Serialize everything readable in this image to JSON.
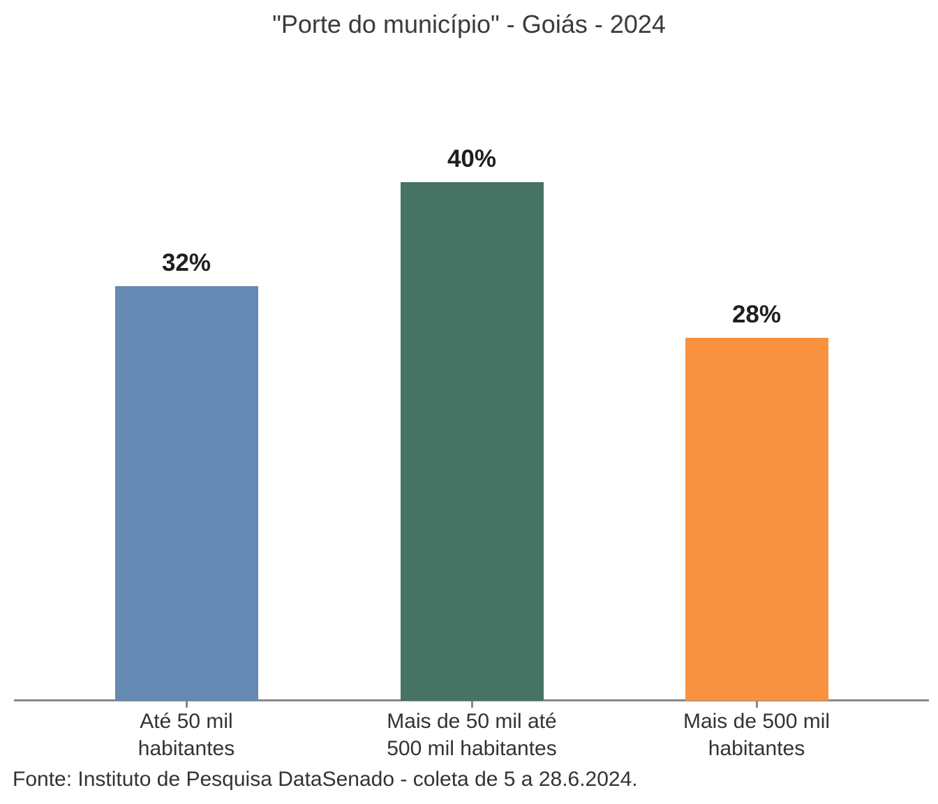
{
  "title": "\"Porte do município\" - Goiás - 2024",
  "footer": "Fonte: Instituto de Pesquisa DataSenado - coleta de 5 a 28.6.2024.",
  "chart_data": {
    "type": "bar",
    "title": "\"Porte do município\" - Goiás - 2024",
    "categories": [
      "Até 50 mil habitantes",
      "Mais de 50 mil até 500 mil habitantes",
      "Mais de 500 mil habitantes"
    ],
    "category_lines": [
      [
        "Até 50 mil",
        "habitantes"
      ],
      [
        "Mais de 50 mil até",
        "500 mil habitantes"
      ],
      [
        "Mais de 500 mil",
        "habitantes"
      ]
    ],
    "values": [
      32,
      40,
      28
    ],
    "value_labels": [
      "32%",
      "40%",
      "28%"
    ],
    "unit": "%",
    "xlabel": "",
    "ylabel": "",
    "ylim": [
      0,
      43
    ],
    "grid": false,
    "legend": false,
    "bar_colors": [
      "#6589B2",
      "#467363",
      "#F99240"
    ],
    "axis_color": "#888888",
    "title_color": "#3A3A3A",
    "value_label_color": "#1F1F1F",
    "category_label_color": "#333333",
    "source": "Fonte: Instituto de Pesquisa DataSenado - coleta de 5 a 28.6.2024."
  }
}
